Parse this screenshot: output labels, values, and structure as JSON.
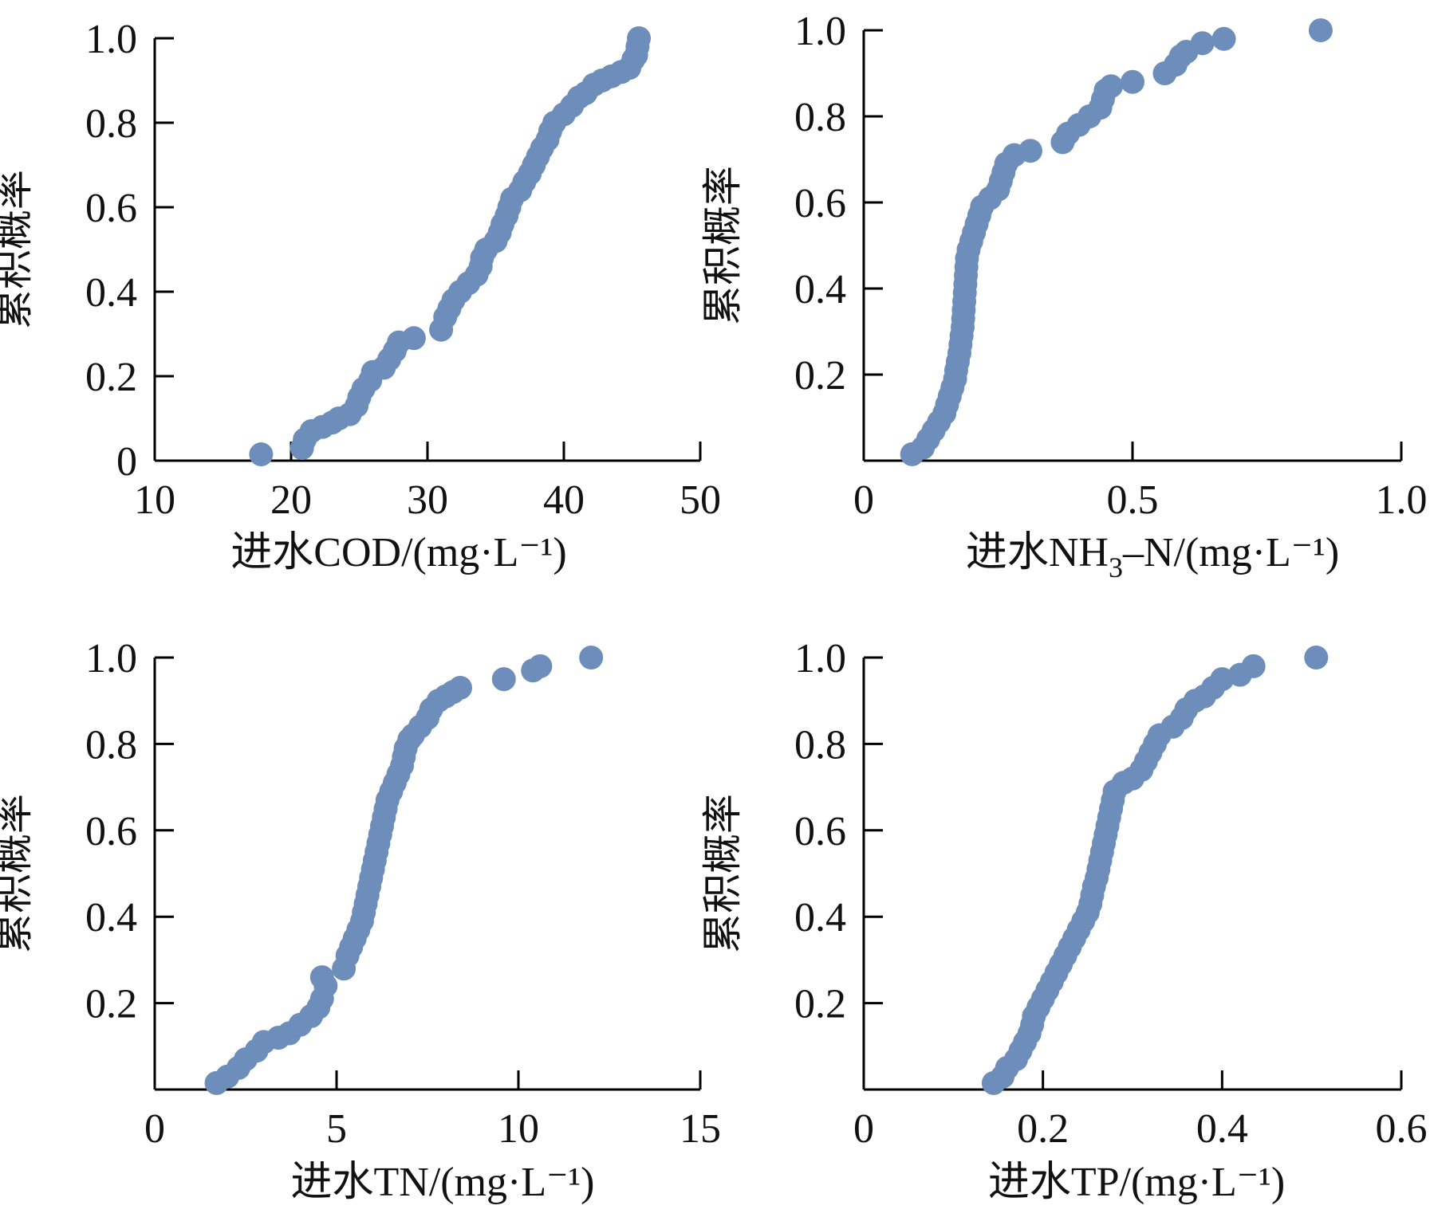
{
  "chart_data": [
    {
      "id": "cod",
      "type": "scatter",
      "xlabel": "进水COD/(mg·L⁻¹)",
      "ylabel": "累积概率",
      "xlim": [
        10,
        50
      ],
      "ylim": [
        0,
        1.0
      ],
      "xticks": [
        10,
        20,
        30,
        40,
        50
      ],
      "xtick_labels": [
        "10",
        "20",
        "30",
        "40",
        "50"
      ],
      "yticks": [
        0,
        0.2,
        0.4,
        0.6,
        0.8,
        1.0
      ],
      "ytick_labels": [
        "0",
        "0.2",
        "0.4",
        "0.6",
        "0.8",
        "1.0"
      ],
      "grid": false,
      "color": "#6d8dba",
      "points": [
        [
          17.8,
          0.015
        ],
        [
          20.8,
          0.03
        ],
        [
          21.0,
          0.05
        ],
        [
          21.5,
          0.07
        ],
        [
          22.3,
          0.08
        ],
        [
          23.0,
          0.09
        ],
        [
          23.5,
          0.1
        ],
        [
          24.3,
          0.11
        ],
        [
          24.8,
          0.13
        ],
        [
          25.0,
          0.15
        ],
        [
          25.3,
          0.17
        ],
        [
          25.8,
          0.19
        ],
        [
          26.0,
          0.21
        ],
        [
          26.8,
          0.22
        ],
        [
          27.2,
          0.24
        ],
        [
          27.6,
          0.26
        ],
        [
          27.9,
          0.28
        ],
        [
          29.0,
          0.29
        ],
        [
          31.0,
          0.31
        ],
        [
          31.3,
          0.34
        ],
        [
          31.6,
          0.36
        ],
        [
          31.9,
          0.38
        ],
        [
          32.4,
          0.4
        ],
        [
          33.0,
          0.42
        ],
        [
          33.6,
          0.44
        ],
        [
          33.9,
          0.46
        ],
        [
          34.0,
          0.48
        ],
        [
          34.3,
          0.5
        ],
        [
          35.0,
          0.52
        ],
        [
          35.3,
          0.54
        ],
        [
          35.5,
          0.56
        ],
        [
          35.8,
          0.58
        ],
        [
          36.0,
          0.6
        ],
        [
          36.2,
          0.62
        ],
        [
          36.8,
          0.64
        ],
        [
          37.1,
          0.66
        ],
        [
          37.5,
          0.68
        ],
        [
          37.8,
          0.7
        ],
        [
          38.1,
          0.72
        ],
        [
          38.4,
          0.74
        ],
        [
          38.8,
          0.76
        ],
        [
          39.0,
          0.78
        ],
        [
          39.3,
          0.8
        ],
        [
          40.0,
          0.82
        ],
        [
          40.6,
          0.84
        ],
        [
          41.1,
          0.86
        ],
        [
          41.6,
          0.87
        ],
        [
          42.2,
          0.89
        ],
        [
          42.8,
          0.9
        ],
        [
          43.5,
          0.91
        ],
        [
          44.2,
          0.92
        ],
        [
          44.8,
          0.93
        ],
        [
          45.1,
          0.95
        ],
        [
          45.3,
          0.96
        ],
        [
          45.4,
          0.98
        ],
        [
          45.5,
          1.0
        ]
      ]
    },
    {
      "id": "nh3n",
      "type": "scatter",
      "xlabel_parts": [
        "进水NH",
        "3",
        "–N/(mg·L⁻¹)"
      ],
      "ylabel": "累积概率",
      "xlim": [
        0,
        1.0
      ],
      "ylim": [
        0,
        1.0
      ],
      "xticks": [
        0,
        0.5,
        1.0
      ],
      "xtick_labels": [
        "0",
        "0.5",
        "1.0"
      ],
      "yticks": [
        0.2,
        0.4,
        0.6,
        0.8,
        1.0
      ],
      "ytick_labels": [
        "0.2",
        "0.4",
        "0.6",
        "0.8",
        "1.0"
      ],
      "grid": false,
      "color": "#6d8dba",
      "points": [
        [
          0.09,
          0.015
        ],
        [
          0.11,
          0.03
        ],
        [
          0.12,
          0.05
        ],
        [
          0.13,
          0.07
        ],
        [
          0.14,
          0.09
        ],
        [
          0.15,
          0.11
        ],
        [
          0.155,
          0.13
        ],
        [
          0.16,
          0.15
        ],
        [
          0.165,
          0.17
        ],
        [
          0.17,
          0.19
        ],
        [
          0.172,
          0.21
        ],
        [
          0.175,
          0.23
        ],
        [
          0.178,
          0.25
        ],
        [
          0.18,
          0.27
        ],
        [
          0.182,
          0.29
        ],
        [
          0.184,
          0.31
        ],
        [
          0.185,
          0.33
        ],
        [
          0.186,
          0.35
        ],
        [
          0.187,
          0.37
        ],
        [
          0.188,
          0.39
        ],
        [
          0.189,
          0.41
        ],
        [
          0.19,
          0.43
        ],
        [
          0.191,
          0.45
        ],
        [
          0.192,
          0.47
        ],
        [
          0.195,
          0.49
        ],
        [
          0.2,
          0.51
        ],
        [
          0.205,
          0.53
        ],
        [
          0.21,
          0.55
        ],
        [
          0.215,
          0.57
        ],
        [
          0.22,
          0.59
        ],
        [
          0.235,
          0.61
        ],
        [
          0.25,
          0.63
        ],
        [
          0.255,
          0.65
        ],
        [
          0.26,
          0.67
        ],
        [
          0.265,
          0.69
        ],
        [
          0.28,
          0.71
        ],
        [
          0.31,
          0.72
        ],
        [
          0.37,
          0.74
        ],
        [
          0.38,
          0.76
        ],
        [
          0.4,
          0.78
        ],
        [
          0.42,
          0.8
        ],
        [
          0.44,
          0.82
        ],
        [
          0.445,
          0.84
        ],
        [
          0.45,
          0.86
        ],
        [
          0.46,
          0.87
        ],
        [
          0.5,
          0.88
        ],
        [
          0.56,
          0.9
        ],
        [
          0.58,
          0.92
        ],
        [
          0.59,
          0.94
        ],
        [
          0.6,
          0.95
        ],
        [
          0.63,
          0.97
        ],
        [
          0.67,
          0.98
        ],
        [
          0.85,
          1.0
        ]
      ]
    },
    {
      "id": "tn",
      "type": "scatter",
      "xlabel": "进水TN/(mg·L⁻¹)",
      "ylabel": "累积概率",
      "xlim": [
        0,
        15
      ],
      "ylim": [
        0,
        1.0
      ],
      "xticks": [
        0,
        5,
        10,
        15
      ],
      "xtick_labels": [
        "0",
        "5",
        "10",
        "15"
      ],
      "yticks": [
        0.2,
        0.4,
        0.6,
        0.8,
        1.0
      ],
      "ytick_labels": [
        "0.2",
        "0.4",
        "0.6",
        "0.8",
        "1.0"
      ],
      "grid": false,
      "color": "#6d8dba",
      "points": [
        [
          1.7,
          0.015
        ],
        [
          2.0,
          0.03
        ],
        [
          2.3,
          0.05
        ],
        [
          2.5,
          0.07
        ],
        [
          2.8,
          0.09
        ],
        [
          3.0,
          0.11
        ],
        [
          3.4,
          0.12
        ],
        [
          3.7,
          0.13
        ],
        [
          4.0,
          0.15
        ],
        [
          4.3,
          0.17
        ],
        [
          4.5,
          0.19
        ],
        [
          4.6,
          0.21
        ],
        [
          4.7,
          0.24
        ],
        [
          4.6,
          0.26
        ],
        [
          5.2,
          0.28
        ],
        [
          5.3,
          0.31
        ],
        [
          5.4,
          0.33
        ],
        [
          5.5,
          0.35
        ],
        [
          5.6,
          0.37
        ],
        [
          5.7,
          0.39
        ],
        [
          5.75,
          0.41
        ],
        [
          5.8,
          0.43
        ],
        [
          5.85,
          0.45
        ],
        [
          5.9,
          0.47
        ],
        [
          5.95,
          0.49
        ],
        [
          6.0,
          0.51
        ],
        [
          6.05,
          0.53
        ],
        [
          6.1,
          0.55
        ],
        [
          6.15,
          0.57
        ],
        [
          6.2,
          0.59
        ],
        [
          6.25,
          0.61
        ],
        [
          6.3,
          0.63
        ],
        [
          6.35,
          0.65
        ],
        [
          6.4,
          0.67
        ],
        [
          6.5,
          0.69
        ],
        [
          6.6,
          0.71
        ],
        [
          6.7,
          0.73
        ],
        [
          6.8,
          0.75
        ],
        [
          6.85,
          0.77
        ],
        [
          6.9,
          0.79
        ],
        [
          7.0,
          0.81
        ],
        [
          7.1,
          0.82
        ],
        [
          7.3,
          0.84
        ],
        [
          7.5,
          0.86
        ],
        [
          7.6,
          0.88
        ],
        [
          7.8,
          0.9
        ],
        [
          8.0,
          0.91
        ],
        [
          8.2,
          0.92
        ],
        [
          8.4,
          0.93
        ],
        [
          9.6,
          0.95
        ],
        [
          10.4,
          0.97
        ],
        [
          10.6,
          0.98
        ],
        [
          12.0,
          1.0
        ]
      ]
    },
    {
      "id": "tp",
      "type": "scatter",
      "xlabel": "进水TP/(mg·L⁻¹)",
      "ylabel": "累积概率",
      "xlim": [
        0,
        0.6
      ],
      "ylim": [
        0,
        1.0
      ],
      "xticks": [
        0,
        0.2,
        0.4,
        0.6
      ],
      "xtick_labels": [
        "0",
        "0.2",
        "0.4",
        "0.6"
      ],
      "yticks": [
        0.2,
        0.4,
        0.6,
        0.8,
        1.0
      ],
      "ytick_labels": [
        "0.2",
        "0.4",
        "0.6",
        "0.8",
        "1.0"
      ],
      "grid": false,
      "color": "#6d8dba",
      "points": [
        [
          0.145,
          0.015
        ],
        [
          0.155,
          0.03
        ],
        [
          0.16,
          0.05
        ],
        [
          0.17,
          0.07
        ],
        [
          0.175,
          0.09
        ],
        [
          0.18,
          0.11
        ],
        [
          0.185,
          0.13
        ],
        [
          0.188,
          0.15
        ],
        [
          0.19,
          0.17
        ],
        [
          0.195,
          0.19
        ],
        [
          0.2,
          0.21
        ],
        [
          0.205,
          0.23
        ],
        [
          0.21,
          0.25
        ],
        [
          0.215,
          0.27
        ],
        [
          0.22,
          0.29
        ],
        [
          0.225,
          0.31
        ],
        [
          0.23,
          0.33
        ],
        [
          0.235,
          0.35
        ],
        [
          0.24,
          0.37
        ],
        [
          0.245,
          0.39
        ],
        [
          0.25,
          0.41
        ],
        [
          0.253,
          0.43
        ],
        [
          0.255,
          0.45
        ],
        [
          0.257,
          0.47
        ],
        [
          0.26,
          0.49
        ],
        [
          0.262,
          0.51
        ],
        [
          0.264,
          0.53
        ],
        [
          0.266,
          0.55
        ],
        [
          0.268,
          0.57
        ],
        [
          0.27,
          0.59
        ],
        [
          0.272,
          0.61
        ],
        [
          0.274,
          0.63
        ],
        [
          0.276,
          0.65
        ],
        [
          0.278,
          0.67
        ],
        [
          0.28,
          0.69
        ],
        [
          0.29,
          0.71
        ],
        [
          0.3,
          0.72
        ],
        [
          0.31,
          0.74
        ],
        [
          0.315,
          0.76
        ],
        [
          0.32,
          0.78
        ],
        [
          0.325,
          0.8
        ],
        [
          0.33,
          0.82
        ],
        [
          0.345,
          0.84
        ],
        [
          0.355,
          0.86
        ],
        [
          0.36,
          0.88
        ],
        [
          0.37,
          0.9
        ],
        [
          0.38,
          0.91
        ],
        [
          0.39,
          0.93
        ],
        [
          0.4,
          0.95
        ],
        [
          0.42,
          0.96
        ],
        [
          0.435,
          0.98
        ],
        [
          0.505,
          1.0
        ]
      ]
    }
  ]
}
